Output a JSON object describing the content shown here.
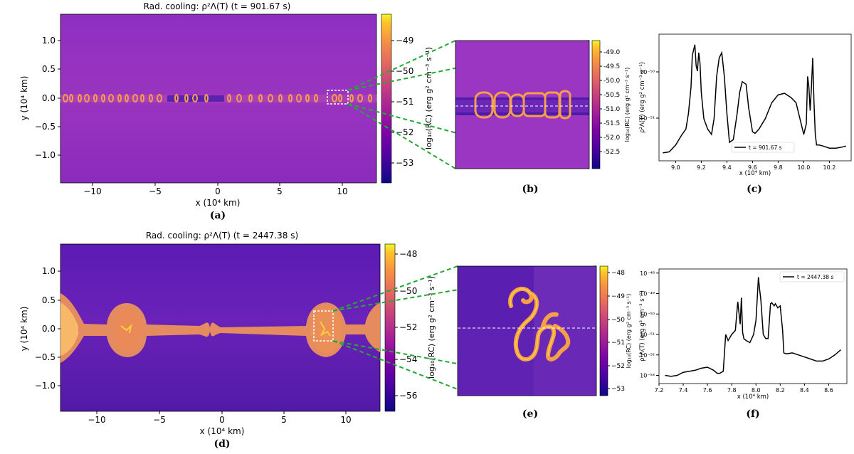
{
  "panels": {
    "a": {
      "letter": "(a)",
      "title": "Rad. cooling: ρ²Λ(T) (t = 901.67 s)",
      "xlabel": "x (10⁴ km)",
      "ylabel": "y (10⁴ km)",
      "xticks": [
        "−10",
        "−5",
        "0",
        "5",
        "10"
      ],
      "yticks": [
        "1.0",
        "0.5",
        "0.0",
        "−0.5",
        "−1.0"
      ],
      "colorbar_label": "log₁₀(RC) (erg g² cm⁻³ s⁻¹)",
      "colorbar_ticks": [
        "−49",
        "−50",
        "−51",
        "−52",
        "−53"
      ]
    },
    "b": {
      "letter": "(b)",
      "colorbar_label": "log₁₀(RC) (erg g² cm⁻³ s⁻¹)",
      "colorbar_ticks": [
        "-49.0",
        "-49.5",
        "-50.0",
        "-50.5",
        "-51.0",
        "-51.5",
        "-52.0",
        "-52.5"
      ]
    },
    "c": {
      "letter": "(c)",
      "xlabel": "x (10⁴ km)",
      "ylabel": "ρ²Λ(T) (erg g² cm⁻³ s⁻¹)",
      "xticks": [
        "9.0",
        "9.2",
        "9.4",
        "9.6",
        "9.8",
        "10.0",
        "10.2"
      ],
      "yticks": [
        "10⁻⁵⁰",
        "10⁻⁵¹"
      ],
      "legend": "t = 901.67 s"
    },
    "d": {
      "letter": "(d)",
      "title": "Rad. cooling: ρ²Λ(T) (t = 2447.38 s)",
      "xlabel": "x (10⁴ km)",
      "ylabel": "y (10⁴ km)",
      "xticks": [
        "−10",
        "−5",
        "0",
        "5",
        "10"
      ],
      "yticks": [
        "1.0",
        "0.5",
        "0.0",
        "−0.5",
        "−1.0"
      ],
      "colorbar_label": "log₁₀(RC) (erg g² cm⁻³ s⁻¹)",
      "colorbar_ticks": [
        "−48",
        "−50",
        "−52",
        "−54",
        "−56"
      ]
    },
    "e": {
      "letter": "(e)",
      "colorbar_label": "log₁₀(RC) (erg g² cm⁻³ s⁻¹)",
      "colorbar_ticks": [
        "−48",
        "−49",
        "−50",
        "−51",
        "−52",
        "−53"
      ]
    },
    "f": {
      "letter": "(f)",
      "xlabel": "x (10⁴ km)",
      "ylabel": "ρ²Λ(T) (erg g² cm⁻³ s⁻¹)",
      "xticks": [
        "7.2",
        "7.4",
        "7.6",
        "7.8",
        "8.0",
        "8.2",
        "8.4",
        "8.6"
      ],
      "yticks": [
        "10⁻⁴⁸",
        "10⁻⁴⁹",
        "10⁻⁵⁰",
        "10⁻⁵¹",
        "10⁻⁵²",
        "10⁻⁵³"
      ],
      "legend": "t = 2447.38 s"
    }
  },
  "colors": {
    "zoom_lines": "#22aa33",
    "background_top": "#9a2ec6",
    "background_bottom": "#6a1fb8",
    "filament": "#f59a4c",
    "profile_line": "#000000"
  },
  "chart_data": [
    {
      "type": "line",
      "panel": "c",
      "series": [
        {
          "name": "t = 901.67 s",
          "x": [
            8.9,
            8.95,
            9.0,
            9.05,
            9.08,
            9.1,
            9.12,
            9.13,
            9.15,
            9.16,
            9.17,
            9.18,
            9.19,
            9.2,
            9.22,
            9.25,
            9.28,
            9.3,
            9.32,
            9.34,
            9.36,
            9.38,
            9.4,
            9.42,
            9.45,
            9.48,
            9.5,
            9.52,
            9.55,
            9.57,
            9.6,
            9.62,
            9.65,
            9.7,
            9.75,
            9.8,
            9.85,
            9.9,
            9.94,
            9.97,
            10.0,
            10.02,
            10.03,
            10.04,
            10.05,
            10.06,
            10.07,
            10.08,
            10.09,
            10.1,
            10.12,
            10.15,
            10.2,
            10.25,
            10.3,
            10.33
          ],
          "y": [
            -51.75,
            -51.73,
            -51.6,
            -51.4,
            -51.3,
            -51.0,
            -50.5,
            -49.9,
            -49.7,
            -50.1,
            -50.2,
            -49.85,
            -50.05,
            -50.6,
            -51.1,
            -51.3,
            -51.4,
            -51.1,
            -50.3,
            -49.95,
            -49.85,
            -50.3,
            -51.0,
            -51.55,
            -51.5,
            -51.0,
            -50.6,
            -50.4,
            -50.45,
            -50.9,
            -51.35,
            -51.38,
            -51.3,
            -51.1,
            -50.8,
            -50.65,
            -50.62,
            -50.7,
            -50.8,
            -51.1,
            -51.4,
            -51.2,
            -50.3,
            -50.5,
            -50.95,
            -50.5,
            -49.95,
            -50.8,
            -51.4,
            -51.6,
            -51.6,
            -51.62,
            -51.66,
            -51.66,
            -51.64,
            -51.62
          ],
          "ylim": [
            -51.9,
            -49.5
          ],
          "xlim": [
            8.87,
            10.37
          ]
        }
      ]
    },
    {
      "type": "line",
      "panel": "f",
      "series": [
        {
          "name": "t = 2447.38 s",
          "x": [
            7.25,
            7.3,
            7.35,
            7.4,
            7.45,
            7.5,
            7.55,
            7.6,
            7.65,
            7.68,
            7.7,
            7.73,
            7.75,
            7.77,
            7.8,
            7.83,
            7.85,
            7.87,
            7.88,
            7.89,
            7.9,
            7.92,
            7.95,
            7.98,
            8.0,
            8.02,
            8.03,
            8.04,
            8.06,
            8.08,
            8.1,
            8.12,
            8.13,
            8.15,
            8.16,
            8.18,
            8.2,
            8.22,
            8.23,
            8.25,
            8.3,
            8.35,
            8.4,
            8.45,
            8.5,
            8.55,
            8.6,
            8.65,
            8.7
          ],
          "y": [
            -53.0,
            -53.05,
            -53.0,
            -52.85,
            -52.8,
            -52.75,
            -52.65,
            -52.6,
            -52.75,
            -52.9,
            -52.9,
            -52.8,
            -51.0,
            -51.3,
            -51.0,
            -50.8,
            -49.4,
            -50.5,
            -49.2,
            -50.9,
            -51.2,
            -51.3,
            -51.4,
            -51.0,
            -50.3,
            -48.2,
            -48.8,
            -49.3,
            -51.0,
            -51.2,
            -51.2,
            -49.5,
            -49.45,
            -49.6,
            -49.5,
            -49.7,
            -49.6,
            -50.8,
            -51.9,
            -51.95,
            -51.9,
            -52.0,
            -52.1,
            -52.2,
            -52.3,
            -52.3,
            -52.2,
            -52.0,
            -51.75
          ],
          "ylim": [
            -53.4,
            -47.8
          ],
          "xlim": [
            7.2,
            8.75
          ]
        }
      ]
    }
  ]
}
